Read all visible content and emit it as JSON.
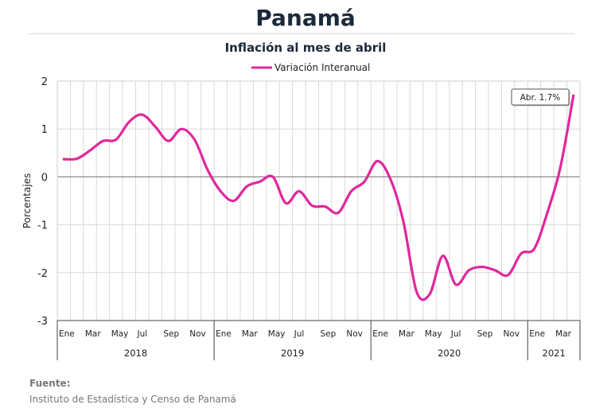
{
  "header": {
    "title": "Panamá",
    "subtitle": "Inflación al mes de abril"
  },
  "source": {
    "label": "Fuente:",
    "text": "Instituto de Estadística y Censo de Panamá"
  },
  "chart_data": {
    "type": "line",
    "title": "Panamá",
    "subtitle": "Inflación al mes de abril",
    "ylabel": "Porcentajes",
    "xlabel": "",
    "ylim": [
      -3,
      2
    ],
    "yticks": [
      2,
      1,
      0,
      -1,
      -2,
      -3
    ],
    "grid": true,
    "legend": "top-center",
    "annotation": "Abr. 1.7%",
    "month_labels": [
      "Ene",
      "",
      "Mar",
      "",
      "May",
      "",
      "Jul",
      "",
      "Sep",
      "",
      "Nov",
      "",
      "Ene",
      "",
      "Mar",
      "",
      "May",
      "",
      "Jul",
      "",
      "Sep",
      "",
      "Nov",
      "",
      "Ene",
      "",
      "Mar",
      "",
      "May",
      "",
      "Jul",
      "",
      "Sep",
      "",
      "Nov",
      "",
      "Ene",
      "",
      "Mar",
      ""
    ],
    "years": [
      {
        "label": "2018",
        "months": 12
      },
      {
        "label": "2019",
        "months": 12
      },
      {
        "label": "2020",
        "months": 12
      },
      {
        "label": "2021",
        "months": 4
      }
    ],
    "series": [
      {
        "name": "Variación Interanual",
        "color": "#e0289c",
        "x": [
          "2018-01",
          "2018-02",
          "2018-03",
          "2018-04",
          "2018-05",
          "2018-06",
          "2018-07",
          "2018-08",
          "2018-09",
          "2018-10",
          "2018-11",
          "2018-12",
          "2019-01",
          "2019-02",
          "2019-03",
          "2019-04",
          "2019-05",
          "2019-06",
          "2019-07",
          "2019-08",
          "2019-09",
          "2019-10",
          "2019-11",
          "2019-12",
          "2020-01",
          "2020-02",
          "2020-03",
          "2020-04",
          "2020-05",
          "2020-06",
          "2020-07",
          "2020-08",
          "2020-09",
          "2020-10",
          "2020-11",
          "2020-12",
          "2021-01",
          "2021-02",
          "2021-03",
          "2021-04"
        ],
        "values": [
          0.37,
          0.38,
          0.55,
          0.75,
          0.78,
          1.15,
          1.3,
          1.05,
          0.75,
          1.0,
          0.78,
          0.15,
          -0.3,
          -0.5,
          -0.2,
          -0.1,
          0.0,
          -0.55,
          -0.3,
          -0.6,
          -0.62,
          -0.75,
          -0.3,
          -0.1,
          0.33,
          -0.05,
          -0.95,
          -2.4,
          -2.45,
          -1.65,
          -2.25,
          -1.95,
          -1.88,
          -1.95,
          -2.05,
          -1.6,
          -1.5,
          -0.75,
          0.2,
          1.7
        ]
      }
    ]
  }
}
